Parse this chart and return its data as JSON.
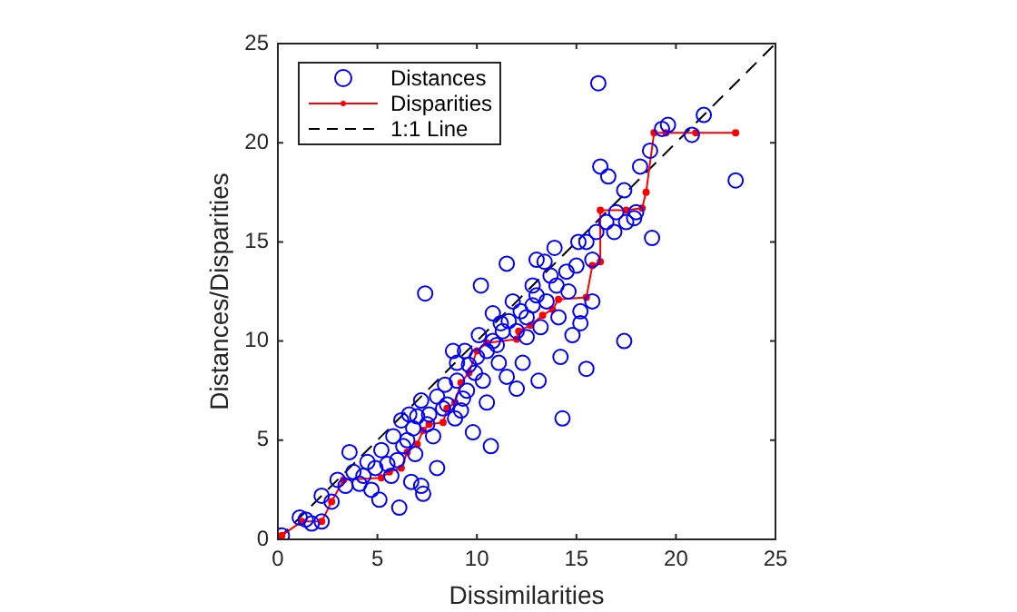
{
  "chart_data": {
    "type": "scatter",
    "xlabel": "Dissimilarities",
    "ylabel": "Distances/Disparities",
    "xlim": [
      0,
      25
    ],
    "ylim": [
      0,
      25
    ],
    "xticks": [
      0,
      5,
      10,
      15,
      20,
      25
    ],
    "yticks": [
      0,
      5,
      10,
      15,
      20,
      25
    ],
    "grid": false,
    "legend": "top left",
    "series": [
      {
        "name": "Distances",
        "marker": "circle",
        "color": "#0000ff",
        "x": [
          0.2,
          1.1,
          1.7,
          2.2,
          2.7,
          3.6,
          3.4,
          4.1,
          4.3,
          4.7,
          5.1,
          4.9,
          5.5,
          5.7,
          6.1,
          6.0,
          6.3,
          6.2,
          6.7,
          7.2,
          7.3,
          6.9,
          7.4,
          6.8,
          7.8,
          7.6,
          8.0,
          8.3,
          8.4,
          8.9,
          9.0,
          9.4,
          9.3,
          9.8,
          9.9,
          10.2,
          10.1,
          10.7,
          10.5,
          10.8,
          11.2,
          11.5,
          11.1,
          11.8,
          12.0,
          12.3,
          12.5,
          12.8,
          13.0,
          13.1,
          13.2,
          13.4,
          13.7,
          13.9,
          14.1,
          14.2,
          14.3,
          14.6,
          14.8,
          15.1,
          15.2,
          15.5,
          15.8,
          16.1,
          16.2,
          16.6,
          16.9,
          17.4,
          17.4,
          17.9,
          18.2,
          18.8,
          18.7,
          19.3,
          19.6,
          20.8,
          21.4,
          23.0,
          6.5,
          7.0,
          7.5,
          8.0,
          8.5,
          9.0,
          9.5,
          10.0,
          10.5,
          10.8,
          11.0,
          11.3,
          11.6,
          12.0,
          12.2,
          12.5,
          12.8,
          13.0,
          13.5,
          14.0,
          14.5,
          15.0,
          15.5,
          16.0,
          16.5,
          17.0,
          17.5,
          18.0,
          15.8,
          15.2,
          8.8,
          9.2,
          9.6,
          10.3,
          11.5,
          7.2,
          6.6,
          5.8,
          5.2,
          4.5,
          3.8,
          3.0,
          2.2,
          1.4
        ],
        "values": [
          0.2,
          1.1,
          0.8,
          0.9,
          1.9,
          4.4,
          2.7,
          2.8,
          3.2,
          2.5,
          2.0,
          3.6,
          3.8,
          3.2,
          1.6,
          4.0,
          4.7,
          6.0,
          2.9,
          2.7,
          2.3,
          4.3,
          12.4,
          5.6,
          5.2,
          6.3,
          3.6,
          6.6,
          7.8,
          6.1,
          8.9,
          9.5,
          7.1,
          5.4,
          8.4,
          12.8,
          10.3,
          4.7,
          6.9,
          11.4,
          10.9,
          13.9,
          8.9,
          12.0,
          7.6,
          8.9,
          11.2,
          12.8,
          14.1,
          8.0,
          10.7,
          14.0,
          13.3,
          14.7,
          11.2,
          9.2,
          6.1,
          12.5,
          10.3,
          15.0,
          10.9,
          8.6,
          14.1,
          23.0,
          18.8,
          18.3,
          15.5,
          10.0,
          17.6,
          16.2,
          18.8,
          15.2,
          19.6,
          20.7,
          20.9,
          20.4,
          21.4,
          18.1,
          5.0,
          6.2,
          5.8,
          7.2,
          6.8,
          8.0,
          7.5,
          9.2,
          9.5,
          10.0,
          9.8,
          10.5,
          11.0,
          10.5,
          11.5,
          10.2,
          11.8,
          12.3,
          12.0,
          12.8,
          13.5,
          13.8,
          15.0,
          15.5,
          16.0,
          16.5,
          16.0,
          16.5,
          12.0,
          11.5,
          9.5,
          6.5,
          8.8,
          8.0,
          8.2,
          7.0,
          6.3,
          5.2,
          4.5,
          3.9,
          3.4,
          3.0,
          2.2,
          1.0
        ]
      },
      {
        "name": "Disparities",
        "type": "line",
        "marker": "circle",
        "line_style": "solid",
        "color": "#ff0000",
        "x": [
          0.2,
          1.2,
          2.2,
          2.7,
          3.3,
          5.2,
          5.6,
          6.2,
          6.5,
          7.0,
          7.3,
          7.6,
          8.3,
          8.5,
          8.9,
          9.2,
          9.6,
          10.0,
          10.5,
          12.0,
          12.1,
          12.7,
          13.3,
          13.8,
          14.1,
          15.5,
          15.8,
          16.2,
          16.2,
          17.5,
          18.3,
          18.5,
          18.9,
          19.5,
          21.0,
          23.0
        ],
        "values": [
          0.2,
          0.9,
          0.9,
          1.9,
          3.0,
          3.1,
          3.4,
          3.6,
          4.4,
          4.8,
          5.5,
          5.8,
          5.9,
          6.6,
          6.9,
          7.9,
          8.4,
          9.5,
          9.9,
          10.1,
          10.5,
          10.8,
          11.3,
          11.6,
          12.1,
          12.2,
          13.8,
          14.0,
          16.6,
          16.6,
          16.7,
          17.5,
          20.5,
          20.5,
          20.5,
          20.5
        ]
      },
      {
        "name": "1:1 Line",
        "type": "line",
        "marker": "none",
        "line_style": "dashed",
        "color": "#000000",
        "x": [
          0,
          25
        ],
        "values": [
          0,
          25
        ]
      }
    ]
  }
}
